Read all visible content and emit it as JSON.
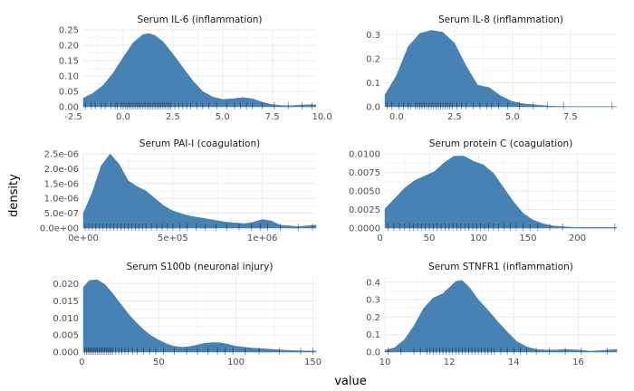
{
  "figure": {
    "xlabel": "value",
    "ylabel": "density",
    "fill_color": "#4682B4",
    "grid_color": "#EBEBEB",
    "rug_color": "#000000"
  },
  "chart_data": [
    {
      "type": "area",
      "title": "Serum IL-6 (inflammation)",
      "xlim": [
        -2.0,
        9.7
      ],
      "ylim": [
        0,
        0.25
      ],
      "xticks": [
        -2.5,
        0,
        2.5,
        5,
        7.5,
        10
      ],
      "xtick_labels": [
        "-2.5",
        "0.0",
        "2.5",
        "5.0",
        "7.5",
        "10.0"
      ],
      "yticks": [
        0,
        0.05,
        0.1,
        0.15,
        0.2,
        0.25
      ],
      "ytick_labels": [
        "0.00",
        "0.05",
        "0.10",
        "0.15",
        "0.20",
        "0.25"
      ],
      "x": [
        -2.0,
        -1.5,
        -1.0,
        -0.5,
        0.0,
        0.5,
        1.0,
        1.3,
        1.6,
        2.0,
        2.5,
        3.0,
        3.5,
        4.0,
        4.5,
        5.0,
        5.5,
        6.0,
        6.5,
        7.0,
        7.5,
        8.0,
        8.5,
        9.0,
        9.5,
        9.7
      ],
      "y": [
        0.028,
        0.045,
        0.07,
        0.11,
        0.16,
        0.208,
        0.235,
        0.238,
        0.232,
        0.212,
        0.172,
        0.128,
        0.085,
        0.05,
        0.032,
        0.024,
        0.026,
        0.03,
        0.026,
        0.015,
        0.007,
        0.004,
        0.004,
        0.006,
        0.007,
        0.006
      ],
      "rug": [
        -1.9,
        -1.6,
        -1.4,
        -1.1,
        -0.9,
        -0.6,
        -0.4,
        -0.3,
        -0.1,
        0.0,
        0.1,
        0.2,
        0.3,
        0.4,
        0.5,
        0.6,
        0.7,
        0.8,
        0.9,
        1.0,
        1.1,
        1.2,
        1.3,
        1.4,
        1.5,
        1.6,
        1.7,
        1.8,
        1.9,
        2.0,
        2.1,
        2.2,
        2.3,
        2.4,
        2.6,
        2.8,
        3.0,
        3.2,
        3.4,
        3.7,
        4.0,
        4.3,
        4.7,
        5.2,
        5.6,
        5.9,
        6.2,
        6.5,
        7.0,
        7.6,
        8.3,
        9.0,
        9.5
      ]
    },
    {
      "type": "area",
      "title": "Serum IL-8 (inflammation)",
      "xlim": [
        -0.5,
        9.5
      ],
      "ylim": [
        0,
        0.32
      ],
      "xticks": [
        0,
        2.5,
        5,
        7.5
      ],
      "xtick_labels": [
        "0.0",
        "2.5",
        "5.0",
        "7.5"
      ],
      "yticks": [
        0,
        0.1,
        0.2,
        0.3
      ],
      "ytick_labels": [
        "0.0",
        "0.1",
        "0.2",
        "0.3"
      ],
      "x": [
        -0.5,
        0.0,
        0.5,
        1.0,
        1.5,
        2.0,
        2.5,
        3.0,
        3.5,
        4.0,
        4.5,
        5.0,
        5.5,
        6.0,
        6.5,
        7.0,
        7.5,
        8.0,
        8.5,
        9.0,
        9.5
      ],
      "y": [
        0.05,
        0.13,
        0.25,
        0.305,
        0.318,
        0.31,
        0.265,
        0.17,
        0.09,
        0.08,
        0.045,
        0.022,
        0.012,
        0.008,
        0.004,
        0.002,
        0.001,
        0.001,
        0.001,
        0.001,
        0.001
      ],
      "rug": [
        -0.4,
        -0.2,
        0.1,
        0.3,
        0.5,
        0.6,
        0.8,
        0.9,
        1.0,
        1.1,
        1.2,
        1.3,
        1.4,
        1.5,
        1.6,
        1.7,
        1.8,
        1.9,
        2.0,
        2.1,
        2.2,
        2.3,
        2.4,
        2.6,
        2.8,
        3.0,
        3.3,
        3.6,
        3.9,
        4.1,
        4.4,
        4.8,
        5.3,
        5.9,
        6.5,
        7.2,
        9.3
      ]
    },
    {
      "type": "area",
      "title": "Serum PAI-I (coagulation)",
      "xlim": [
        0,
        1300000
      ],
      "ylim": [
        0,
        2.5e-06
      ],
      "xticks": [
        0,
        500000,
        1000000
      ],
      "xtick_labels": [
        "0e+00",
        "5e+05",
        "1e+06"
      ],
      "yticks": [
        0,
        5e-07,
        1e-06,
        1.5e-06,
        2e-06,
        2.5e-06
      ],
      "ytick_labels": [
        "0.0e+00",
        "5.0e-07",
        "1.0e-06",
        "1.5e-06",
        "2.0e-06",
        "2.5e-06"
      ],
      "x": [
        0,
        50000,
        100000,
        150000,
        200000,
        250000,
        300000,
        350000,
        400000,
        450000,
        500000,
        550000,
        600000,
        700000,
        800000,
        900000,
        950000,
        1000000,
        1050000,
        1100000,
        1200000,
        1300000
      ],
      "y": [
        5e-07,
        1.2e-06,
        2.1e-06,
        2.5e-06,
        2.15e-06,
        1.6e-06,
        1.4e-06,
        1.25e-06,
        1e-06,
        7.5e-07,
        5.8e-07,
        4.8e-07,
        4e-07,
        3e-07,
        2e-07,
        1.5e-07,
        2e-07,
        2.9e-07,
        2.4e-07,
        1e-07,
        5e-08,
        1e-07
      ],
      "rug": [
        10000,
        30000,
        50000,
        70000,
        90000,
        110000,
        130000,
        150000,
        170000,
        190000,
        210000,
        230000,
        250000,
        270000,
        290000,
        310000,
        330000,
        350000,
        380000,
        410000,
        440000,
        470000,
        500000,
        540000,
        580000,
        630000,
        680000,
        740000,
        800000,
        870000,
        940000,
        990000,
        1030000,
        1100000,
        1200000,
        1280000
      ]
    },
    {
      "type": "area",
      "title": "Serum protein C (coagulation)",
      "xlim": [
        5,
        240
      ],
      "ylim": [
        0,
        0.01
      ],
      "xticks": [
        0,
        50,
        100,
        150,
        200
      ],
      "xtick_labels": [
        "0",
        "50",
        "100",
        "150",
        "200"
      ],
      "yticks": [
        0,
        0.0025,
        0.005,
        0.0075,
        0.01
      ],
      "ytick_labels": [
        "0.0000",
        "0.0025",
        "0.0050",
        "0.0075",
        "0.0100"
      ],
      "x": [
        5,
        15,
        25,
        35,
        45,
        55,
        65,
        75,
        85,
        95,
        105,
        115,
        125,
        135,
        145,
        155,
        165,
        175,
        185,
        195,
        205,
        215,
        225,
        240
      ],
      "y": [
        0.0026,
        0.004,
        0.0054,
        0.0064,
        0.007,
        0.0076,
        0.0088,
        0.0097,
        0.0097,
        0.009,
        0.0085,
        0.0074,
        0.0055,
        0.0036,
        0.002,
        0.0011,
        0.0006,
        0.0003,
        0.0002,
        0.0001,
        0.0001,
        0.0001,
        0.0001,
        0.0001
      ],
      "rug": [
        8,
        14,
        20,
        25,
        30,
        34,
        38,
        42,
        46,
        50,
        54,
        58,
        62,
        66,
        70,
        74,
        78,
        82,
        86,
        90,
        94,
        98,
        102,
        106,
        110,
        115,
        120,
        126,
        132,
        138,
        145,
        152,
        160,
        172,
        185,
        238
      ]
    },
    {
      "type": "area",
      "title": "Serum S100b (neuronal injury)",
      "xlim": [
        1,
        152
      ],
      "ylim": [
        0,
        0.022
      ],
      "xticks": [
        0,
        50,
        100,
        150
      ],
      "xtick_labels": [
        "0",
        "50",
        "100",
        "150"
      ],
      "yticks": [
        0,
        0.005,
        0.01,
        0.015,
        0.02
      ],
      "ytick_labels": [
        "0.000",
        "0.005",
        "0.010",
        "0.015",
        "0.020"
      ],
      "x": [
        1,
        5,
        10,
        15,
        20,
        25,
        30,
        35,
        40,
        45,
        50,
        55,
        60,
        65,
        70,
        75,
        80,
        85,
        90,
        95,
        100,
        110,
        120,
        130,
        140,
        152
      ],
      "y": [
        0.019,
        0.021,
        0.0212,
        0.0198,
        0.0172,
        0.0142,
        0.0113,
        0.0088,
        0.0066,
        0.0048,
        0.0035,
        0.0024,
        0.0017,
        0.0014,
        0.0016,
        0.0021,
        0.0026,
        0.0028,
        0.0027,
        0.0023,
        0.0017,
        0.0012,
        0.0009,
        0.0006,
        0.0004,
        0.0003
      ],
      "rug": [
        2,
        3,
        4,
        5,
        6,
        7,
        8,
        9,
        10,
        11,
        12,
        13,
        14,
        15,
        16,
        17,
        18,
        19,
        20,
        22,
        24,
        26,
        28,
        30,
        33,
        36,
        40,
        44,
        48,
        53,
        60,
        68,
        75,
        82,
        88,
        93,
        98,
        106,
        115,
        128,
        142,
        150
      ]
    },
    {
      "type": "area",
      "title": "Serum STNFR1 (inflammation)",
      "xlim": [
        10,
        17.2
      ],
      "ylim": [
        0,
        0.43
      ],
      "xticks": [
        10,
        12,
        14,
        16
      ],
      "xtick_labels": [
        "10",
        "12",
        "14",
        "16"
      ],
      "yticks": [
        0,
        0.1,
        0.2,
        0.3,
        0.4
      ],
      "ytick_labels": [
        "0.0",
        "0.1",
        "0.2",
        "0.3",
        "0.4"
      ],
      "x": [
        10.0,
        10.3,
        10.6,
        10.9,
        11.2,
        11.5,
        11.8,
        12.0,
        12.2,
        12.4,
        12.6,
        12.9,
        13.2,
        13.5,
        13.8,
        14.1,
        14.4,
        14.7,
        15.0,
        15.3,
        15.6,
        16.0,
        16.4,
        16.8,
        17.2
      ],
      "y": [
        0.01,
        0.025,
        0.07,
        0.15,
        0.25,
        0.31,
        0.335,
        0.37,
        0.405,
        0.41,
        0.375,
        0.3,
        0.24,
        0.175,
        0.115,
        0.06,
        0.03,
        0.015,
        0.012,
        0.012,
        0.015,
        0.012,
        0.005,
        0.01,
        0.015
      ],
      "rug": [
        10.1,
        10.5,
        10.9,
        11.1,
        11.3,
        11.4,
        11.5,
        11.6,
        11.7,
        11.8,
        11.9,
        12.0,
        12.1,
        12.2,
        12.3,
        12.4,
        12.5,
        12.6,
        12.7,
        12.8,
        12.9,
        13.0,
        13.1,
        13.2,
        13.3,
        13.4,
        13.6,
        13.8,
        14.0,
        14.2,
        14.4,
        14.7,
        15.1,
        15.6,
        16.1,
        16.9
      ]
    }
  ]
}
